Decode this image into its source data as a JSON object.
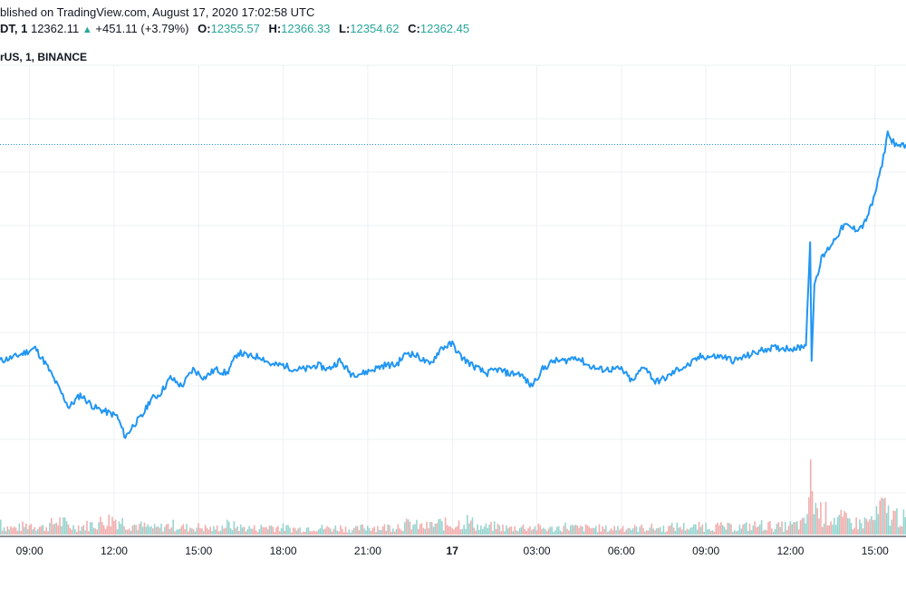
{
  "header": {
    "published": "blished on TradingView.com, August 17, 2020 17:02:58 UTC",
    "symbol": "DT, 1",
    "last": "12362.11",
    "change_arrow": "▲",
    "change": "+451.11 (+3.79%)",
    "o_label": "O:",
    "o_value": "12355.57",
    "h_label": "H:",
    "h_value": "12366.33",
    "l_label": "L:",
    "l_value": "12354.62",
    "c_label": "C:",
    "c_value": "12362.45"
  },
  "legend": {
    "label": "rUS, 1, BINANCE"
  },
  "colors": {
    "line": "#2196f3",
    "grid": "#eef0f3",
    "axis": "#131722",
    "vol_up": "#80cbc4",
    "vol_down": "#ef9a9a"
  },
  "chart_data": {
    "type": "line",
    "x_ticks": [
      "09:00",
      "12:00",
      "15:00",
      "18:00",
      "21:00",
      "17",
      "03:00",
      "06:00",
      "09:00",
      "12:00",
      "15:00"
    ],
    "x_tick_hours": [
      9,
      12,
      15,
      18,
      21,
      24,
      27,
      30,
      33,
      36,
      39
    ],
    "x_range_hours": [
      7.95,
      40.1
    ],
    "y_range": [
      0,
      100
    ],
    "last_price_level": 83,
    "series": [
      {
        "values": [
          [
            7.95,
            32
          ],
          [
            8.5,
            33
          ],
          [
            9.2,
            35
          ],
          [
            9.6,
            31
          ],
          [
            10.0,
            26
          ],
          [
            10.4,
            21
          ],
          [
            10.8,
            24
          ],
          [
            11.3,
            21
          ],
          [
            11.7,
            20
          ],
          [
            12.1,
            19
          ],
          [
            12.4,
            14
          ],
          [
            12.7,
            17
          ],
          [
            13.0,
            19
          ],
          [
            13.3,
            23
          ],
          [
            13.6,
            24
          ],
          [
            14.0,
            28
          ],
          [
            14.4,
            26
          ],
          [
            14.8,
            30
          ],
          [
            15.2,
            28
          ],
          [
            15.6,
            30
          ],
          [
            16.0,
            29
          ],
          [
            16.4,
            34
          ],
          [
            16.8,
            33
          ],
          [
            17.2,
            33
          ],
          [
            17.6,
            31
          ],
          [
            18.0,
            31
          ],
          [
            18.4,
            30
          ],
          [
            18.8,
            30
          ],
          [
            19.2,
            31
          ],
          [
            19.6,
            30
          ],
          [
            20.0,
            32
          ],
          [
            20.4,
            29
          ],
          [
            20.8,
            29
          ],
          [
            21.2,
            30
          ],
          [
            21.6,
            31
          ],
          [
            22.0,
            31
          ],
          [
            22.4,
            34
          ],
          [
            22.8,
            33
          ],
          [
            23.2,
            31
          ],
          [
            23.6,
            35
          ],
          [
            24.0,
            36
          ],
          [
            24.3,
            33
          ],
          [
            24.7,
            31
          ],
          [
            25.2,
            29
          ],
          [
            25.6,
            30
          ],
          [
            26.0,
            29
          ],
          [
            26.4,
            29
          ],
          [
            26.8,
            26
          ],
          [
            27.2,
            30
          ],
          [
            27.6,
            32
          ],
          [
            28.0,
            32
          ],
          [
            28.4,
            33
          ],
          [
            28.8,
            31
          ],
          [
            29.2,
            30
          ],
          [
            29.6,
            30
          ],
          [
            30.0,
            30
          ],
          [
            30.4,
            27
          ],
          [
            30.8,
            31
          ],
          [
            31.2,
            27
          ],
          [
            31.6,
            28
          ],
          [
            32.0,
            30
          ],
          [
            32.4,
            31
          ],
          [
            32.8,
            33
          ],
          [
            33.2,
            33
          ],
          [
            33.6,
            33
          ],
          [
            34.0,
            32
          ],
          [
            34.4,
            33
          ],
          [
            34.8,
            34
          ],
          [
            35.2,
            35
          ],
          [
            35.6,
            35
          ],
          [
            36.0,
            35
          ],
          [
            36.3,
            35
          ],
          [
            36.55,
            36
          ],
          [
            36.7,
            60
          ],
          [
            36.75,
            32
          ],
          [
            36.85,
            50
          ],
          [
            37.1,
            56
          ],
          [
            37.5,
            60
          ],
          [
            37.9,
            64
          ],
          [
            38.3,
            63
          ],
          [
            38.6,
            64
          ],
          [
            38.9,
            69
          ],
          [
            39.1,
            74
          ],
          [
            39.3,
            80
          ],
          [
            39.45,
            86
          ],
          [
            39.55,
            84
          ],
          [
            39.65,
            84
          ],
          [
            39.8,
            82
          ],
          [
            39.95,
            83
          ],
          [
            40.1,
            83
          ]
        ]
      }
    ],
    "volume": [
      [
        8.0,
        1.2
      ],
      [
        8.5,
        0.9
      ],
      [
        9.0,
        1.5
      ],
      [
        9.5,
        1.0
      ],
      [
        10.0,
        2.0
      ],
      [
        10.5,
        1.1
      ],
      [
        11.0,
        1.3
      ],
      [
        11.5,
        1.8
      ],
      [
        12.0,
        2.3
      ],
      [
        12.5,
        1.5
      ],
      [
        13.0,
        1.2
      ],
      [
        13.5,
        0.9
      ],
      [
        14.0,
        1.4
      ],
      [
        14.5,
        1.0
      ],
      [
        15.0,
        1.1
      ],
      [
        15.5,
        0.8
      ],
      [
        16.0,
        1.4
      ],
      [
        16.5,
        1.0
      ],
      [
        17.0,
        0.9
      ],
      [
        17.5,
        1.2
      ],
      [
        18.0,
        1.0
      ],
      [
        18.5,
        0.8
      ],
      [
        19.0,
        1.1
      ],
      [
        19.5,
        0.9
      ],
      [
        20.0,
        1.0
      ],
      [
        20.5,
        0.7
      ],
      [
        21.0,
        1.2
      ],
      [
        21.5,
        1.0
      ],
      [
        22.0,
        1.3
      ],
      [
        22.5,
        1.5
      ],
      [
        23.0,
        1.1
      ],
      [
        23.5,
        1.6
      ],
      [
        24.0,
        1.4
      ],
      [
        24.5,
        2.0
      ],
      [
        25.0,
        1.0
      ],
      [
        25.5,
        1.2
      ],
      [
        26.0,
        0.9
      ],
      [
        26.5,
        1.1
      ],
      [
        27.0,
        1.0
      ],
      [
        27.5,
        0.8
      ],
      [
        28.0,
        1.2
      ],
      [
        28.5,
        0.9
      ],
      [
        29.0,
        1.0
      ],
      [
        29.5,
        0.8
      ],
      [
        30.0,
        1.1
      ],
      [
        30.5,
        0.9
      ],
      [
        31.0,
        1.0
      ],
      [
        31.5,
        0.9
      ],
      [
        32.0,
        1.2
      ],
      [
        32.5,
        1.0
      ],
      [
        33.0,
        1.3
      ],
      [
        33.5,
        1.1
      ],
      [
        34.0,
        1.0
      ],
      [
        34.5,
        1.2
      ],
      [
        35.0,
        1.4
      ],
      [
        35.5,
        1.1
      ],
      [
        36.0,
        1.3
      ],
      [
        36.5,
        1.6
      ],
      [
        36.7,
        7.5
      ],
      [
        36.9,
        3.5
      ],
      [
        37.2,
        3.0
      ],
      [
        37.5,
        2.4
      ],
      [
        37.8,
        2.2
      ],
      [
        38.1,
        1.8
      ],
      [
        38.4,
        1.6
      ],
      [
        38.7,
        1.9
      ],
      [
        39.0,
        2.3
      ],
      [
        39.2,
        4.0
      ],
      [
        39.4,
        3.3
      ],
      [
        39.6,
        2.6
      ],
      [
        39.8,
        2.8
      ],
      [
        40.0,
        2.2
      ]
    ]
  }
}
